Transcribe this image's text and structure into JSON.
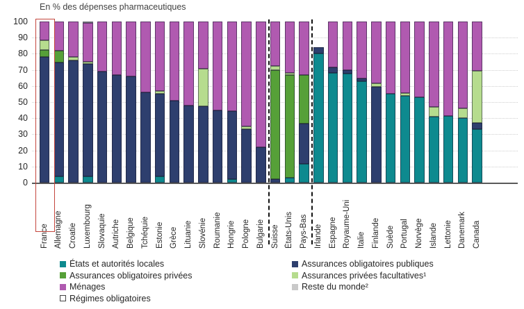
{
  "title": "En % des dépenses pharmaceutiques",
  "chart_data": {
    "type": "bar",
    "stacked": true,
    "unit": "% des dépenses pharmaceutiques",
    "title": "En % des dépenses pharmaceutiques",
    "ylim": [
      0,
      100
    ],
    "yticks": [
      0,
      10,
      20,
      30,
      40,
      50,
      60,
      70,
      80,
      90,
      100
    ],
    "grid": "horizontal-dotted",
    "legend_position": "bottom",
    "highlighted_category": "France",
    "separators_after_index": [
      15,
      18
    ],
    "categories": [
      "France",
      "Allemagne",
      "Croatie",
      "Luxembourg",
      "Slovaquie",
      "Autriche",
      "Belgique",
      "Tchéquie",
      "Estonie",
      "Grèce",
      "Lituanie",
      "Slovénie",
      "Roumanie",
      "Hongrie",
      "Pologne",
      "Bulgarie",
      "Suisse",
      "États-Unis",
      "Pays-Bas",
      "Irlande",
      "Espagne",
      "Royaume-Uni",
      "Italie",
      "Finlande",
      "Suède",
      "Portugal",
      "Norvège",
      "Islande",
      "Lettonie",
      "Danemark",
      "Canada"
    ],
    "series_order": [
      "locales",
      "publiques",
      "privees_obligatoires",
      "facultatives",
      "menages",
      "reste_du_monde"
    ],
    "series_meta": {
      "locales": {
        "label": "États et autorités locales",
        "color": "#0e8a8f"
      },
      "publiques": {
        "label": "Assurances obligatoires publiques",
        "color": "#2e3f6e"
      },
      "privees_obligatoires": {
        "label": "Assurances obligatoires privées",
        "color": "#56a038"
      },
      "facultatives": {
        "label": "Assurances privées facultatives¹",
        "color": "#b6dc8e"
      },
      "menages": {
        "label": "Ménages",
        "color": "#b05ab0"
      },
      "reste_du_monde": {
        "label": "Reste du monde²",
        "color": "#c9c9c9"
      },
      "regimes_obligatoires": {
        "label": "Régimes obligatoires",
        "color": "#ffffff"
      }
    },
    "series": {
      "locales": [
        0,
        4,
        0,
        4,
        0,
        0,
        0,
        0,
        4,
        0,
        0,
        0,
        0,
        2,
        0,
        0,
        0,
        3,
        11.5,
        80,
        68,
        67.5,
        63,
        0,
        55,
        54,
        53,
        41,
        41.5,
        40,
        33
      ],
      "publiques": [
        78,
        70.5,
        76,
        69.5,
        69,
        67,
        66,
        56,
        51,
        51,
        48,
        47.5,
        45,
        42.5,
        33,
        22,
        2,
        0,
        25,
        4,
        3.5,
        2.5,
        1.5,
        59.5,
        0,
        0,
        0,
        0,
        0,
        0,
        4
      ],
      "privees_obligatoires": [
        4.5,
        7.5,
        0,
        0,
        0,
        0,
        0,
        0,
        0,
        0,
        0,
        0,
        0,
        0,
        0,
        0,
        68,
        64,
        30.5,
        0,
        0,
        0,
        0,
        0,
        0,
        0,
        0,
        0,
        0,
        0,
        0
      ],
      "facultatives": [
        6,
        0,
        2,
        1.5,
        0,
        0,
        0,
        0,
        2,
        0,
        0,
        23,
        0,
        0,
        2,
        0,
        2.5,
        1,
        0,
        0,
        0,
        0,
        0,
        2,
        0,
        1.5,
        0,
        6,
        0,
        6,
        32.5
      ],
      "menages": [
        11.5,
        18,
        22,
        24,
        31,
        33,
        34,
        44,
        43,
        49,
        52,
        29.5,
        55,
        55.5,
        65,
        78,
        27.5,
        32,
        33,
        0,
        28.5,
        30,
        35.5,
        38.5,
        45,
        44.5,
        47,
        53,
        58.5,
        54,
        30.5
      ],
      "reste_du_monde": [
        0,
        0,
        0,
        1,
        0,
        0,
        0,
        0,
        0,
        0,
        0,
        0,
        0,
        0,
        0,
        0,
        0,
        0,
        0,
        0,
        0,
        0,
        0,
        0,
        0,
        0,
        0,
        0,
        0,
        0,
        0
      ]
    }
  },
  "legend": {
    "left": [
      {
        "key": "locales",
        "label": "États et autorités locales",
        "hollow": false
      },
      {
        "key": "privees_obligatoires",
        "label": "Assurances obligatoires privées",
        "hollow": false
      },
      {
        "key": "menages",
        "label": "Ménages",
        "hollow": false
      },
      {
        "key": "regimes_obligatoires",
        "label": "Régimes obligatoires",
        "hollow": true
      }
    ],
    "right": [
      {
        "key": "publiques",
        "label": "Assurances obligatoires publiques",
        "hollow": false
      },
      {
        "key": "facultatives",
        "label": "Assurances privées facultatives¹",
        "hollow": false
      },
      {
        "key": "reste_du_monde",
        "label": "Reste du monde²",
        "hollow": false
      }
    ]
  },
  "colors": {
    "highlight_box": "#c4453c",
    "axis_line": "#595959",
    "gridline": "#cfcfcf"
  }
}
